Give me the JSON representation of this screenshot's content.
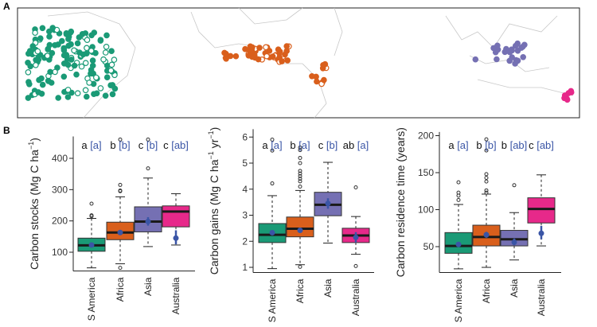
{
  "panel_labels": {
    "a": "A",
    "b": "B"
  },
  "colors": {
    "S America": "#1a9a76",
    "Africa": "#d95f1c",
    "Asia": "#7570b3",
    "Australia": "#e7298a",
    "mean": "#3a55a6",
    "letters_bracket": "#3a55a6"
  },
  "chart_data": [
    {
      "type": "box",
      "ylabel": {
        "main": "Carbon stocks (Mg C ha",
        "sup1": "−1",
        "mid": "",
        "sup2": "",
        "close": ")"
      },
      "categories": [
        "S America",
        "Africa",
        "Asia",
        "Australia"
      ],
      "ylim": [
        40,
        470
      ],
      "yticks": [
        100,
        200,
        300,
        400
      ],
      "letters": [
        [
          "a",
          "[a]"
        ],
        [
          "b",
          "[b]"
        ],
        [
          "c",
          "[b]"
        ],
        [
          "c",
          "[ab]"
        ]
      ],
      "boxes": [
        {
          "lo": 50,
          "q1": 103,
          "med": 122,
          "q3": 145,
          "hi": 208,
          "mean": 123,
          "ci": [
            116,
            130
          ],
          "outliers": [
            215,
            218,
            255
          ]
        },
        {
          "lo": 63,
          "q1": 140,
          "med": 163,
          "q3": 196,
          "hi": 277,
          "mean": 163,
          "ci": [
            156,
            170
          ],
          "outliers": [
            50,
            295,
            297,
            315,
            460
          ]
        },
        {
          "lo": 118,
          "q1": 165,
          "med": 198,
          "q3": 245,
          "hi": 337,
          "mean": 198,
          "ci": [
            185,
            212
          ],
          "outliers": [
            368,
            460
          ]
        },
        {
          "lo": 123,
          "q1": 181,
          "med": 230,
          "q3": 248,
          "hi": 287,
          "mean": 145,
          "ci": [
            125,
            170
          ],
          "outliers": []
        }
      ]
    },
    {
      "type": "box",
      "ylabel": {
        "main": "Carbon gains (Mg C ha",
        "sup1": "−1",
        "mid": " yr",
        "sup2": "−1",
        "close": ")"
      },
      "categories": [
        "S America",
        "Africa",
        "Asia",
        "Australia"
      ],
      "ylim": [
        0.8,
        6.3
      ],
      "yticks": [
        1,
        2,
        3,
        4,
        5,
        6
      ],
      "letters": [
        [
          "a",
          "[a]"
        ],
        [
          "b",
          "[a]"
        ],
        [
          "c",
          "[b]"
        ],
        [
          "ab",
          "[a]"
        ]
      ],
      "boxes": [
        {
          "lo": 0.95,
          "q1": 1.95,
          "med": 2.25,
          "q3": 2.68,
          "hi": 3.75,
          "mean": 2.33,
          "ci": [
            2.25,
            2.4
          ],
          "outliers": [
            4.22,
            5.48,
            5.9
          ]
        },
        {
          "lo": 1.1,
          "q1": 2.17,
          "med": 2.48,
          "q3": 2.93,
          "hi": 3.95,
          "mean": 2.42,
          "ci": [
            2.35,
            2.5
          ],
          "outliers": [
            1.02,
            4.1,
            4.3,
            4.4,
            4.5,
            4.6,
            4.7,
            5.0,
            5.2,
            5.5,
            5.6
          ]
        },
        {
          "lo": 1.93,
          "q1": 2.98,
          "med": 3.4,
          "q3": 3.88,
          "hi": 5.03,
          "mean": 3.45,
          "ci": [
            3.25,
            3.65
          ],
          "outliers": []
        },
        {
          "lo": 1.5,
          "q1": 1.95,
          "med": 2.22,
          "q3": 2.5,
          "hi": 2.95,
          "mean": 2.15,
          "ci": [
            1.95,
            2.35
          ],
          "outliers": [
            1.05,
            4.07
          ]
        }
      ]
    },
    {
      "type": "box",
      "ylabel": {
        "main": "Carbon residence time (years)",
        "sup1": "",
        "mid": "",
        "sup2": "",
        "close": ""
      },
      "categories": [
        "S America",
        "Africa",
        "Asia",
        "Australia"
      ],
      "ylim": [
        15,
        205
      ],
      "yticks": [
        50,
        100,
        150,
        200
      ],
      "letters": [
        [
          "a",
          "[a]"
        ],
        [
          "b",
          "[b]"
        ],
        [
          "b",
          "[ab]"
        ],
        [
          "c",
          "[ab]"
        ]
      ],
      "boxes": [
        {
          "lo": 20,
          "q1": 41,
          "med": 51,
          "q3": 69,
          "hi": 107,
          "mean": 53,
          "ci": [
            50,
            56
          ],
          "outliers": [
            113,
            119,
            123,
            137
          ]
        },
        {
          "lo": 22,
          "q1": 51,
          "med": 63,
          "q3": 79,
          "hi": 121,
          "mean": 66,
          "ci": [
            62,
            70
          ],
          "outliers": [
            123,
            126,
            138,
            143,
            148,
            180,
            195
          ]
        },
        {
          "lo": 32,
          "q1": 51,
          "med": 60,
          "q3": 72,
          "hi": 96,
          "mean": 56,
          "ci": [
            52,
            61
          ],
          "outliers": [
            133
          ]
        },
        {
          "lo": 51,
          "q1": 82,
          "med": 101,
          "q3": 116,
          "hi": 147,
          "mean": 68,
          "ci": [
            60,
            78
          ],
          "outliers": []
        }
      ]
    }
  ]
}
